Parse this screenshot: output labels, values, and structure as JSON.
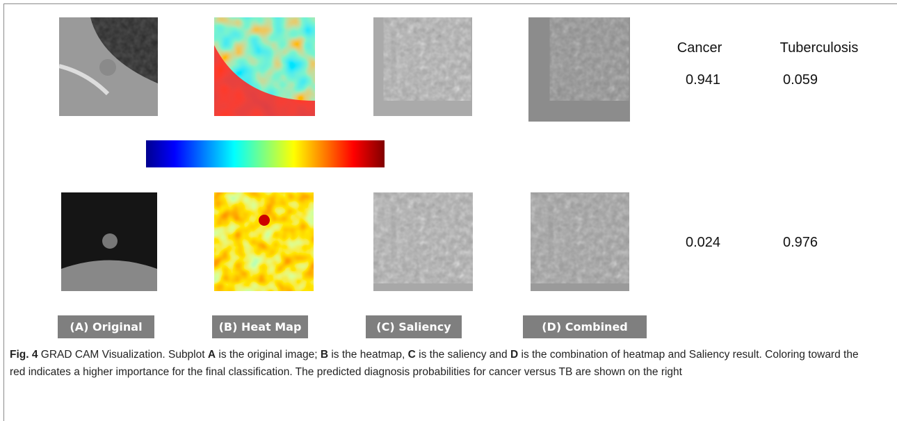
{
  "figure": {
    "panel_labels": [
      "(A) Original",
      "(B) Heat Map",
      "(C) Saliency",
      "(D) Combined"
    ],
    "probabilities": {
      "headers": [
        "Cancer",
        "Tuberculosis"
      ],
      "rows": [
        [
          "0.941",
          "0.059"
        ],
        [
          "0.024",
          "0.976"
        ]
      ]
    },
    "caption": {
      "label": "Fig. 4",
      "segments": [
        {
          "text": " GRAD CAM Visualization. Subplot ",
          "bold": false
        },
        {
          "text": "A",
          "bold": true
        },
        {
          "text": " is the original image; ",
          "bold": false
        },
        {
          "text": "B",
          "bold": true
        },
        {
          "text": " is the heatmap, ",
          "bold": false
        },
        {
          "text": "C",
          "bold": true
        },
        {
          "text": " is the saliency and ",
          "bold": false
        },
        {
          "text": "D",
          "bold": true
        },
        {
          "text": " is the combination of heatmap and Saliency result. Coloring toward the red indicates a higher importance for the final classification. The predicted diagnosis probabilities for cancer versus TB are shown on the right",
          "bold": false
        }
      ]
    }
  }
}
